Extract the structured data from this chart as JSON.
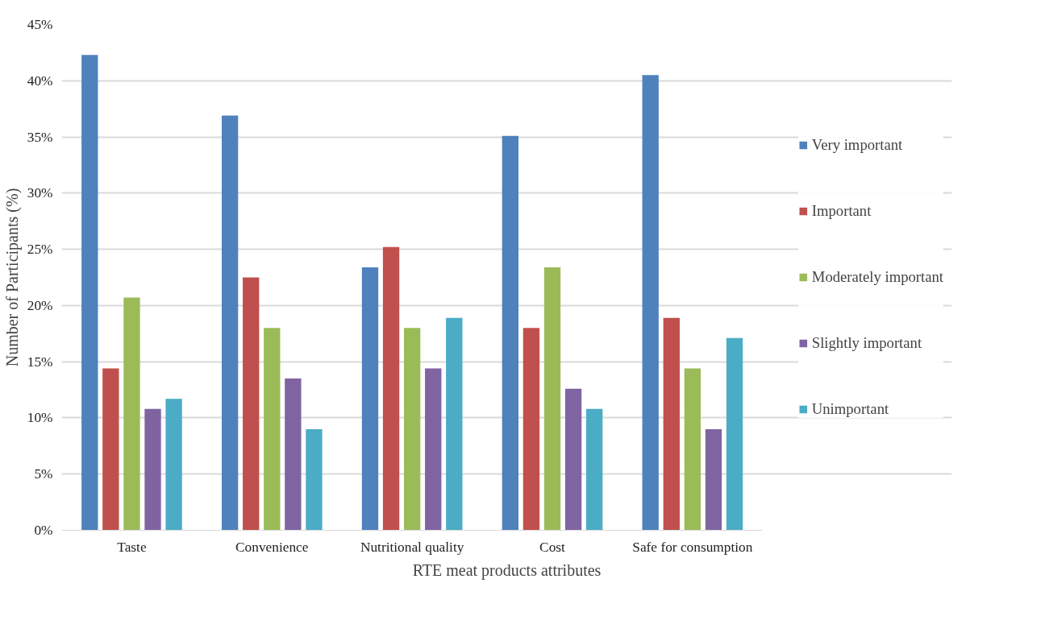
{
  "chart_data": {
    "type": "bar",
    "xlabel": "RTE meat products attributes",
    "ylabel": "Number of Participants (%)",
    "categories": [
      "Taste",
      "Convenience",
      "Nutritional quality",
      "Cost",
      "Safe for consumption"
    ],
    "series": [
      {
        "name": "Very important",
        "color": "#4f81bd",
        "values": [
          42.3,
          36.9,
          23.4,
          35.1,
          40.5
        ]
      },
      {
        "name": "Important",
        "color": "#c0504d",
        "values": [
          14.4,
          22.5,
          25.2,
          18.0,
          18.9
        ]
      },
      {
        "name": "Moderately important",
        "color": "#9bbb59",
        "values": [
          20.7,
          18.0,
          18.0,
          23.4,
          14.4
        ]
      },
      {
        "name": "Slightly important",
        "color": "#8064a2",
        "values": [
          10.8,
          13.5,
          14.4,
          12.6,
          9.0
        ]
      },
      {
        "name": "Unimportant",
        "color": "#4bacc6",
        "values": [
          11.7,
          9.0,
          18.9,
          10.8,
          17.1
        ]
      }
    ],
    "ylim": [
      0,
      45
    ],
    "yticks": [
      {
        "value": 0,
        "label": "0%"
      },
      {
        "value": 5,
        "label": "5%"
      },
      {
        "value": 10,
        "label": "10%"
      },
      {
        "value": 15,
        "label": "15%"
      },
      {
        "value": 20,
        "label": "20%"
      },
      {
        "value": 25,
        "label": "25%"
      },
      {
        "value": 30,
        "label": "30%"
      },
      {
        "value": 35,
        "label": "35%"
      },
      {
        "value": 40,
        "label": "40%"
      },
      {
        "value": 45,
        "label": "45%"
      }
    ],
    "grid": "y",
    "legend": "right"
  }
}
